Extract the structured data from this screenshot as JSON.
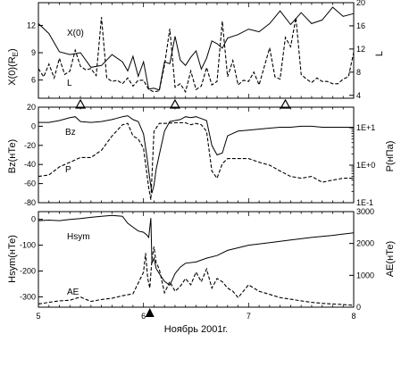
{
  "chart_data": [
    {
      "type": "line",
      "ylabel_left": "X(0)(R",
      "ylabel_left_sub": "E",
      "ylabel_left_close": ")",
      "ylabel_right": "L",
      "yticks_left": [
        "6",
        "9",
        "12"
      ],
      "yticks_right": [
        "4",
        "8",
        "12",
        "16",
        "20"
      ],
      "ylim_left": [
        4,
        14.5
      ],
      "ylim_right": [
        3.5,
        20
      ],
      "series": [
        {
          "name": "X(0)",
          "axis": "left",
          "style": "solid",
          "x": [
            5.0,
            5.1,
            5.2,
            5.3,
            5.4,
            5.5,
            5.6,
            5.7,
            5.8,
            5.85,
            5.9,
            5.95,
            6.0,
            6.05,
            6.1,
            6.15,
            6.2,
            6.25,
            6.3,
            6.35,
            6.4,
            6.45,
            6.5,
            6.55,
            6.6,
            6.65,
            6.7,
            6.75,
            6.8,
            6.9,
            7.0,
            7.1,
            7.2,
            7.3,
            7.4,
            7.5,
            7.6,
            7.7,
            7.8,
            7.9,
            8.0
          ],
          "y": [
            12.2,
            11.1,
            9.1,
            8.8,
            9.0,
            7.4,
            7.6,
            8.8,
            8.0,
            7.0,
            8.6,
            6.4,
            8.0,
            5.0,
            5.1,
            4.9,
            8.0,
            7.8,
            10.8,
            8.2,
            7.6,
            8.5,
            9.2,
            7.2,
            8.4,
            10.3,
            10.0,
            9.5,
            10.6,
            11.0,
            11.6,
            11.3,
            12.2,
            13.6,
            12.1,
            13.4,
            12.2,
            12.6,
            14.0,
            13.0,
            13.3
          ]
        },
        {
          "name": "L",
          "axis": "right",
          "style": "dashed",
          "x": [
            5.0,
            5.05,
            5.1,
            5.15,
            5.2,
            5.25,
            5.3,
            5.35,
            5.4,
            5.45,
            5.5,
            5.55,
            5.6,
            5.65,
            5.7,
            5.75,
            5.8,
            5.85,
            5.9,
            5.95,
            6.0,
            6.05,
            6.1,
            6.15,
            6.2,
            6.25,
            6.3,
            6.35,
            6.4,
            6.45,
            6.5,
            6.55,
            6.6,
            6.65,
            6.7,
            6.75,
            6.8,
            6.85,
            6.9,
            6.95,
            7.0,
            7.05,
            7.1,
            7.15,
            7.2,
            7.25,
            7.3,
            7.35,
            7.4,
            7.45,
            7.5,
            7.55,
            7.6,
            7.65,
            7.7,
            7.75,
            7.8,
            7.85,
            7.9,
            7.95,
            8.0
          ],
          "y": [
            8.6,
            7.2,
            9.4,
            7.0,
            10.4,
            7.6,
            8.2,
            11.8,
            9.0,
            8.4,
            8.6,
            7.4,
            17.5,
            7.0,
            6.4,
            6.6,
            6.0,
            7.0,
            5.6,
            6.6,
            6.6,
            5.0,
            4.6,
            4.8,
            9.2,
            15.5,
            5.4,
            6.0,
            4.6,
            8.2,
            5.0,
            5.6,
            8.8,
            5.8,
            6.4,
            16.8,
            7.2,
            10.0,
            5.8,
            6.6,
            6.4,
            8.0,
            5.8,
            9.0,
            12.2,
            7.2,
            6.8,
            14.0,
            12.4,
            17.4,
            7.6,
            6.8,
            6.2,
            7.0,
            6.4,
            6.4,
            6.0,
            6.0,
            6.8,
            7.2,
            11.4
          ]
        }
      ],
      "markers_x": [
        5.4,
        6.3,
        7.35
      ]
    },
    {
      "type": "line",
      "ylabel_left": "Bz(нТе)",
      "ylabel_right": "P(нПа)",
      "yticks_left": [
        "20",
        "0",
        "-20",
        "-40",
        "-60",
        "-80"
      ],
      "yticks_right": [
        "1E+1",
        "1E+0",
        "1E-1"
      ],
      "ylim_left": [
        -80,
        20
      ],
      "series": [
        {
          "name": "Bz",
          "axis": "left",
          "style": "solid",
          "x": [
            5.0,
            5.1,
            5.2,
            5.3,
            5.35,
            5.4,
            5.5,
            5.6,
            5.7,
            5.8,
            5.85,
            5.9,
            5.95,
            6.0,
            6.03,
            6.06,
            6.08,
            6.1,
            6.12,
            6.15,
            6.2,
            6.25,
            6.3,
            6.35,
            6.4,
            6.45,
            6.5,
            6.55,
            6.6,
            6.65,
            6.7,
            6.75,
            6.8,
            6.9,
            7.0,
            7.1,
            7.2,
            7.3,
            7.4,
            7.5,
            7.6,
            7.7,
            7.8,
            7.9,
            8.0
          ],
          "y": [
            4,
            4,
            6,
            9,
            10,
            5,
            4,
            5,
            7,
            10,
            11,
            7,
            5,
            -8,
            -30,
            -55,
            -70,
            -62,
            -45,
            -30,
            -5,
            5,
            6,
            7,
            10,
            9,
            10,
            8,
            6,
            -20,
            -30,
            -28,
            -10,
            -5,
            -4,
            -3,
            -2,
            -1,
            -1,
            0,
            0,
            -1,
            -1,
            -1,
            -1
          ]
        },
        {
          "name": "P",
          "axis": "right",
          "style": "dashed",
          "x": [
            5.0,
            5.1,
            5.2,
            5.3,
            5.4,
            5.5,
            5.6,
            5.7,
            5.8,
            5.85,
            5.9,
            5.95,
            6.0,
            6.05,
            6.07,
            6.1,
            6.15,
            6.2,
            6.3,
            6.4,
            6.45,
            6.5,
            6.55,
            6.6,
            6.65,
            6.7,
            6.75,
            6.8,
            6.9,
            7.0,
            7.1,
            7.2,
            7.3,
            7.4,
            7.5,
            7.6,
            7.7,
            7.8,
            7.9,
            8.0
          ],
          "y": [
            0.5,
            0.55,
            0.9,
            1.2,
            1.6,
            1.6,
            2.5,
            6,
            12,
            13,
            6,
            5,
            2.8,
            0.25,
            0.12,
            8,
            13,
            13,
            13.5,
            13.5,
            12,
            13,
            12,
            8,
            0.7,
            0.45,
            1.1,
            1.5,
            1.5,
            1.5,
            1.2,
            1.0,
            0.7,
            0.5,
            0.45,
            0.5,
            0.35,
            0.4,
            0.45,
            0.45
          ]
        }
      ]
    },
    {
      "type": "line",
      "ylabel_left": "Hsym(нТе)",
      "ylabel_right": "AE(нТе)",
      "yticks_left": [
        "0",
        "-100",
        "-200",
        "-300"
      ],
      "yticks_right": [
        "3000",
        "2000",
        "1000",
        "0"
      ],
      "ylim_left": [
        -340,
        30
      ],
      "ylim_right": [
        0,
        3000
      ],
      "xticks": [
        "5",
        "6",
        "7",
        "8"
      ],
      "xlabel": "Ноябрь 2001г.",
      "series": [
        {
          "name": "Hsym",
          "axis": "left",
          "style": "solid",
          "x": [
            5.0,
            5.1,
            5.2,
            5.3,
            5.4,
            5.5,
            5.6,
            5.7,
            5.8,
            5.85,
            5.9,
            5.95,
            6.0,
            6.03,
            6.05,
            6.07,
            6.08,
            6.1,
            6.12,
            6.15,
            6.2,
            6.25,
            6.3,
            6.35,
            6.4,
            6.5,
            6.6,
            6.7,
            6.8,
            6.9,
            7.0,
            7.2,
            7.4,
            7.6,
            7.8,
            8.0
          ],
          "y": [
            -5,
            -3,
            -5,
            0,
            3,
            8,
            12,
            15,
            12,
            -15,
            -30,
            -45,
            -50,
            -60,
            -70,
            5,
            -170,
            -150,
            -190,
            -210,
            -240,
            -255,
            -210,
            -185,
            -170,
            -165,
            -150,
            -140,
            -120,
            -110,
            -100,
            -90,
            -80,
            -70,
            -62,
            -52
          ]
        },
        {
          "name": "AE",
          "axis": "right",
          "style": "dashed",
          "x": [
            5.0,
            5.1,
            5.2,
            5.3,
            5.4,
            5.5,
            5.6,
            5.7,
            5.8,
            5.9,
            6.0,
            6.02,
            6.04,
            6.06,
            6.08,
            6.1,
            6.12,
            6.15,
            6.2,
            6.25,
            6.3,
            6.35,
            6.4,
            6.45,
            6.5,
            6.55,
            6.6,
            6.65,
            6.7,
            6.75,
            6.8,
            6.85,
            6.9,
            7.0,
            7.1,
            7.2,
            7.3,
            7.4,
            7.5,
            7.6,
            7.7,
            7.8,
            7.9,
            8.0
          ],
          "y": [
            100,
            150,
            200,
            220,
            320,
            180,
            240,
            280,
            360,
            420,
            1100,
            1700,
            900,
            600,
            1500,
            1900,
            1400,
            1200,
            450,
            800,
            500,
            650,
            900,
            700,
            1100,
            800,
            1200,
            600,
            900,
            800,
            600,
            500,
            300,
            700,
            500,
            400,
            300,
            250,
            200,
            150,
            120,
            100,
            80,
            60
          ]
        }
      ],
      "onset_marker_x": 6.06
    }
  ]
}
